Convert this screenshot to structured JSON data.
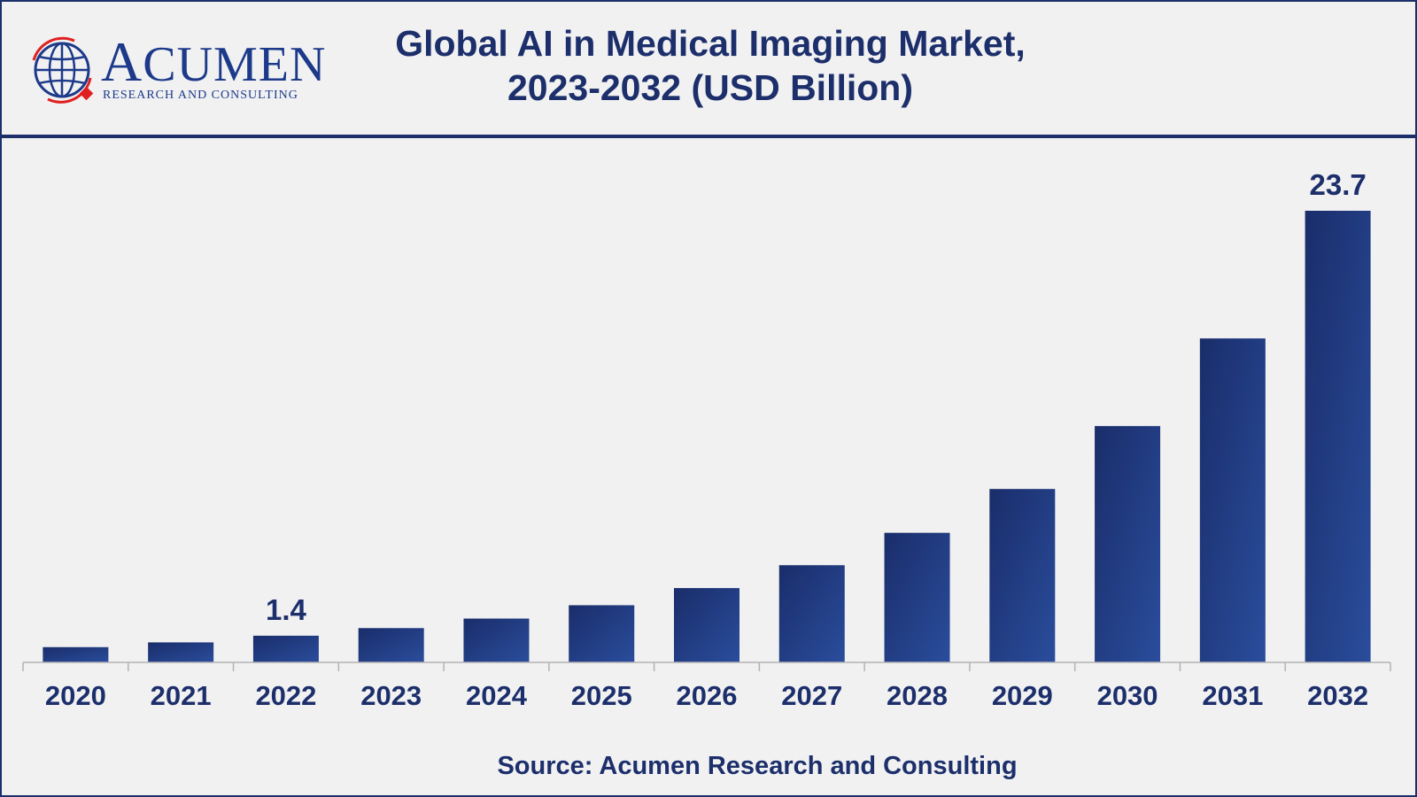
{
  "brand": {
    "name": "Acumen",
    "tagline": "RESEARCH AND CONSULTING"
  },
  "title_line1": "Global AI in Medical Imaging Market,",
  "title_line2": "2023-2032 (USD Billion)",
  "source": "Source: Acumen Research and Consulting",
  "colors": {
    "frame": "#1c2f6b",
    "bar_dark": "#1a2d6a",
    "bar_light": "#2a4d9c",
    "text": "#1c2f6b",
    "logo_red": "#e02020"
  },
  "chart_data": {
    "type": "bar",
    "title": "Global AI in Medical Imaging Market, 2023-2032 (USD Billion)",
    "xlabel": "",
    "ylabel": "",
    "categories": [
      "2020",
      "2021",
      "2022",
      "2023",
      "2024",
      "2025",
      "2026",
      "2027",
      "2028",
      "2029",
      "2030",
      "2031",
      "2032"
    ],
    "values": [
      0.8,
      1.05,
      1.4,
      1.8,
      2.3,
      3.0,
      3.9,
      5.1,
      6.8,
      9.1,
      12.4,
      17.0,
      23.7
    ],
    "data_labels": [
      {
        "category": "2022",
        "text": "1.4"
      },
      {
        "category": "2032",
        "text": "23.7"
      }
    ],
    "ylim": [
      0,
      23.7
    ],
    "grid": false,
    "legend": "none"
  }
}
